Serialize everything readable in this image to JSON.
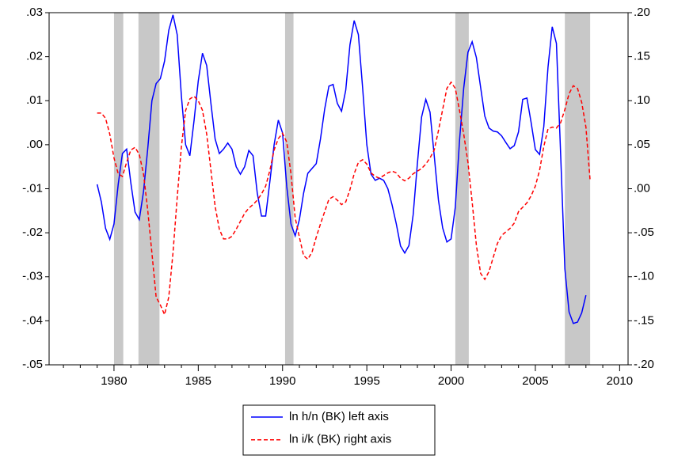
{
  "chart_data": {
    "type": "line",
    "x": [
      1979.0,
      1979.25,
      1979.5,
      1979.75,
      1980.0,
      1980.25,
      1980.5,
      1980.75,
      1981.0,
      1981.25,
      1981.5,
      1981.75,
      1982.0,
      1982.25,
      1982.5,
      1982.75,
      1983.0,
      1983.25,
      1983.5,
      1983.75,
      1984.0,
      1984.25,
      1984.5,
      1984.75,
      1985.0,
      1985.25,
      1985.5,
      1985.75,
      1986.0,
      1986.25,
      1986.5,
      1986.75,
      1987.0,
      1987.25,
      1987.5,
      1987.75,
      1988.0,
      1988.25,
      1988.5,
      1988.75,
      1989.0,
      1989.25,
      1989.5,
      1989.75,
      1990.0,
      1990.25,
      1990.5,
      1990.75,
      1991.0,
      1991.25,
      1991.5,
      1991.75,
      1992.0,
      1992.25,
      1992.5,
      1992.75,
      1993.0,
      1993.25,
      1993.5,
      1993.75,
      1994.0,
      1994.25,
      1994.5,
      1994.75,
      1995.0,
      1995.25,
      1995.5,
      1995.75,
      1996.0,
      1996.25,
      1996.5,
      1996.75,
      1997.0,
      1997.25,
      1997.5,
      1997.75,
      1998.0,
      1998.25,
      1998.5,
      1998.75,
      1999.0,
      1999.25,
      1999.5,
      1999.75,
      2000.0,
      2000.25,
      2000.5,
      2000.75,
      2001.0,
      2001.25,
      2001.5,
      2001.75,
      2002.0,
      2002.25,
      2002.5,
      2002.75,
      2003.0,
      2003.25,
      2003.5,
      2003.75,
      2004.0,
      2004.25,
      2004.5,
      2004.75,
      2005.0,
      2005.25,
      2005.5,
      2005.75,
      2006.0,
      2006.25,
      2006.5,
      2006.75,
      2007.0,
      2007.25,
      2007.5,
      2007.75,
      2008.0,
      2008.25
    ],
    "series": [
      {
        "name": "ln h/n (BK) left axis",
        "color": "#0000ff",
        "dash": "solid",
        "axis": "y",
        "values": [
          -0.009,
          -0.013,
          -0.019,
          -0.0215,
          -0.018,
          -0.009,
          -0.002,
          -0.001,
          -0.0087,
          -0.0153,
          -0.017,
          -0.0107,
          -0.001,
          0.01,
          0.0139,
          0.015,
          0.019,
          0.026,
          0.0295,
          0.025,
          0.011,
          0.0,
          -0.0025,
          0.0055,
          0.0145,
          0.0208,
          0.018,
          0.0094,
          0.0013,
          -0.002,
          -0.001,
          0.0004,
          -0.001,
          -0.005,
          -0.0067,
          -0.005,
          -0.0013,
          -0.0025,
          -0.011,
          -0.0162,
          -0.0162,
          -0.0083,
          0.0,
          0.0056,
          0.0027,
          -0.0095,
          -0.018,
          -0.0207,
          -0.017,
          -0.011,
          -0.0065,
          -0.0054,
          -0.0043,
          0.0013,
          0.0081,
          0.0133,
          0.0137,
          0.0094,
          0.0076,
          0.0124,
          0.0227,
          0.0282,
          0.025,
          0.013,
          0.0,
          -0.0067,
          -0.0081,
          -0.0076,
          -0.0081,
          -0.01,
          -0.0137,
          -0.018,
          -0.023,
          -0.0246,
          -0.0229,
          -0.0159,
          -0.0043,
          0.0063,
          0.0103,
          0.0074,
          -0.0025,
          -0.0126,
          -0.0189,
          -0.0221,
          -0.0214,
          -0.0142,
          0.0009,
          0.0129,
          0.021,
          0.0234,
          0.0198,
          0.0131,
          0.0065,
          0.0038,
          0.0031,
          0.0029,
          0.002,
          0.0005,
          -0.0009,
          -0.0002,
          0.0029,
          0.0103,
          0.0106,
          0.005,
          -0.0011,
          -0.0022,
          0.0041,
          0.0176,
          0.0268,
          0.023,
          -0.0022,
          -0.0282,
          -0.038,
          -0.0406,
          -0.0403,
          -0.0382,
          -0.0342,
          null
        ]
      },
      {
        "name": "ln i/k (BK) right axis",
        "color": "#ff0000",
        "dash": "dashed",
        "axis": "y2",
        "values": [
          0.086,
          0.086,
          0.08,
          0.062,
          0.035,
          0.017,
          0.014,
          0.03,
          0.044,
          0.047,
          0.039,
          0.017,
          -0.024,
          -0.073,
          -0.123,
          -0.132,
          -0.143,
          -0.123,
          -0.073,
          -0.01,
          0.048,
          0.089,
          0.102,
          0.105,
          0.1,
          0.089,
          0.062,
          0.021,
          -0.02,
          -0.046,
          -0.057,
          -0.057,
          -0.054,
          -0.046,
          -0.037,
          -0.028,
          -0.022,
          -0.018,
          -0.013,
          -0.006,
          0.003,
          0.021,
          0.044,
          0.057,
          0.063,
          0.053,
          0.017,
          -0.033,
          -0.055,
          -0.076,
          -0.08,
          -0.072,
          -0.055,
          -0.04,
          -0.026,
          -0.012,
          -0.009,
          -0.013,
          -0.018,
          -0.015,
          -0.001,
          0.017,
          0.03,
          0.033,
          0.028,
          0.018,
          0.014,
          0.012,
          0.015,
          0.018,
          0.02,
          0.018,
          0.012,
          0.009,
          0.012,
          0.017,
          0.02,
          0.023,
          0.028,
          0.035,
          0.044,
          0.066,
          0.09,
          0.114,
          0.121,
          0.114,
          0.089,
          0.062,
          0.03,
          -0.015,
          -0.064,
          -0.096,
          -0.103,
          -0.094,
          -0.078,
          -0.062,
          -0.053,
          -0.049,
          -0.045,
          -0.039,
          -0.026,
          -0.021,
          -0.016,
          -0.008,
          0.003,
          0.021,
          0.048,
          0.068,
          0.07,
          0.069,
          0.075,
          0.09,
          0.108,
          0.117,
          0.114,
          0.098,
          0.07,
          0.009
        ]
      }
    ],
    "shaded_periods": [
      [
        1980.0,
        1980.55
      ],
      [
        1981.45,
        1982.7
      ],
      [
        1990.15,
        1990.65
      ],
      [
        2000.25,
        2001.05
      ],
      [
        2006.75,
        2008.25
      ]
    ],
    "shade_color": "#c8c8c8",
    "xlim": [
      1976.15,
      2010.5
    ],
    "xticks": [
      1980,
      1985,
      1990,
      1995,
      2000,
      2005,
      2010
    ],
    "xticks_minor": [
      1977,
      1978,
      1979,
      1981,
      1982,
      1983,
      1984,
      1986,
      1987,
      1988,
      1989,
      1991,
      1992,
      1993,
      1994,
      1996,
      1997,
      1998,
      1999,
      2001,
      2002,
      2003,
      2004,
      2006,
      2007,
      2008,
      2009
    ],
    "ylim": [
      -0.05,
      0.03
    ],
    "yticks": [
      {
        "value": -0.05,
        "label": "-.05"
      },
      {
        "value": -0.04,
        "label": "-.04"
      },
      {
        "value": -0.03,
        "label": "-.03"
      },
      {
        "value": -0.02,
        "label": "-.02"
      },
      {
        "value": -0.01,
        "label": "-.01"
      },
      {
        "value": 0,
        "label": ".00"
      },
      {
        "value": 0.01,
        "label": ".01"
      },
      {
        "value": 0.02,
        "label": ".02"
      },
      {
        "value": 0.03,
        "label": ".03"
      }
    ],
    "y2lim": [
      -0.2,
      0.2
    ],
    "y2ticks": [
      {
        "value": -0.2,
        "label": "-.20"
      },
      {
        "value": -0.15,
        "label": "-.15"
      },
      {
        "value": -0.1,
        "label": "-.10"
      },
      {
        "value": -0.05,
        "label": "-.05"
      },
      {
        "value": 0,
        "label": ".00"
      },
      {
        "value": 0.05,
        "label": ".05"
      },
      {
        "value": 0.1,
        "label": ".10"
      },
      {
        "value": 0.15,
        "label": ".15"
      },
      {
        "value": 0.2,
        "label": ".20"
      }
    ],
    "legend": "bottom"
  }
}
